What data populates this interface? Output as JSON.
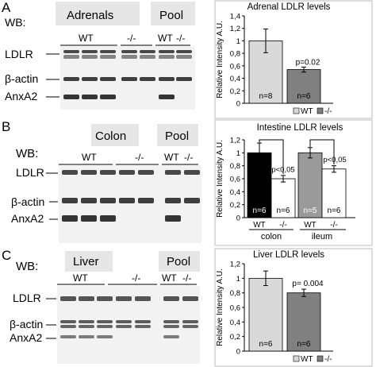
{
  "panels": [
    {
      "letter": "A",
      "wb": "WB:",
      "tissue": "Adrenals",
      "pool": "Pool",
      "groups": [
        "WT",
        "-/-",
        "WT",
        "-/-"
      ],
      "bands": [
        "LDLR",
        "β-actin",
        "AnxA2"
      ],
      "chart": {
        "type": "bar",
        "title": "Adrenal LDLR levels",
        "ylabel": "Relative Intensity  A.U.",
        "ylim": [
          0,
          1.4
        ],
        "ticks": [
          "0",
          "0,2",
          "0,4",
          "0,6",
          "0,8",
          "1",
          "1,2",
          "1,4"
        ],
        "categories": [
          "WT",
          "-/-"
        ],
        "values": [
          1.0,
          0.54
        ],
        "errors": [
          0.19,
          0.04
        ],
        "n": [
          "n=8",
          "n=6"
        ],
        "pvalue": "p=0.02",
        "legend": [
          "WT",
          "-/-"
        ]
      }
    },
    {
      "letter": "B",
      "wb": "WB:",
      "tissue": "Colon",
      "pool": "Pool",
      "groups": [
        "WT",
        "-/-",
        "WT",
        "-/-"
      ],
      "bands": [
        "LDLR",
        "β-actin",
        "AnxA2"
      ],
      "chart": {
        "type": "bar",
        "title": "Intestine LDLR levels",
        "ylabel": "Relative Intensity  A.U.",
        "ylim": [
          0,
          1.2
        ],
        "ticks": [
          "0",
          "0,2",
          "0,4",
          "0,6",
          "0,8",
          "1",
          "1,2"
        ],
        "categories": [
          "WT",
          "-/-",
          "WT",
          "-/-"
        ],
        "groups": [
          "colon",
          "ileum"
        ],
        "values": [
          1.0,
          0.6,
          1.0,
          0.75
        ],
        "errors": [
          0.15,
          0.05,
          0.08,
          0.05
        ],
        "colors": [
          "#000000",
          "#ffffff",
          "#9a9a9a",
          "#ffffff"
        ],
        "n": [
          "n=6",
          "n=6",
          "n=5",
          "n=6"
        ],
        "pvalues": [
          "p<0,05",
          "p<0,05"
        ]
      }
    },
    {
      "letter": "C",
      "wb": "WB:",
      "tissue": "Liver",
      "pool": "Pool",
      "groups": [
        "WT",
        "-/-",
        "WT",
        "-/-"
      ],
      "bands": [
        "LDLR",
        "β-actin",
        "AnxA2"
      ],
      "chart": {
        "type": "bar",
        "title": "Liver LDLR levels",
        "ylabel": "Relative Intensity  A.U.",
        "ylim": [
          0,
          1.2
        ],
        "ticks": [
          "0",
          "0,2",
          "0,4",
          "0,6",
          "0,8",
          "1",
          "1,2"
        ],
        "categories": [
          "WT",
          "-/-"
        ],
        "values": [
          1.0,
          0.8
        ],
        "errors": [
          0.1,
          0.05
        ],
        "n": [
          "n=6",
          "n=6"
        ],
        "pvalue": "p= 0.004",
        "legend": [
          "WT",
          "-/-"
        ]
      }
    }
  ],
  "colors": {
    "wt_bar": "#d9d9d9",
    "ko_bar": "#808080",
    "blot_bg": "#eeeeee",
    "band": "#2a2a2a"
  }
}
